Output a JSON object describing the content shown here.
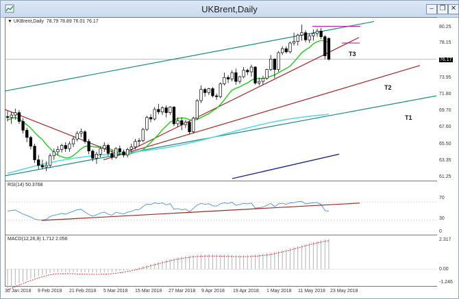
{
  "window": {
    "title": "UKBrent,Daily"
  },
  "info_line": {
    "symbol": "UKBrent,Daily",
    "values": "78.79 78.89 76.01 76.17"
  },
  "price_axis": {
    "ticks": [
      "80.25",
      "78.15",
      "76.17",
      "73.95",
      "71.80",
      "69.70",
      "67.60",
      "65.50",
      "63.35",
      "61.25"
    ],
    "current": "76.17"
  },
  "rsi": {
    "label": "RSI(14) 50.3768",
    "ticks": [
      "70",
      "30",
      "0"
    ]
  },
  "macd": {
    "label": "MACD(12,26,9) 1.712 2.056",
    "ticks": [
      "2.317",
      "0.00",
      "-1.246"
    ]
  },
  "x_axis": [
    "30 Jan 2018",
    "9 Feb 2018",
    "21 Feb 2018",
    "5 Mar 2018",
    "15 Mar 2018",
    "27 Mar 2018",
    "9 Apr 2018",
    "19 Apr 2018",
    "1 May 2018",
    "11 May 2018",
    "23 May 2018"
  ],
  "annotations": {
    "t1": "T1",
    "t2": "T2",
    "t3": "T3"
  },
  "colors": {
    "channel": "#1a8a7a",
    "trend_red": "#a02424",
    "ma_green": "#2ec82e",
    "ma_cyan": "#5fd8e6",
    "ma_blue": "#1e2b8a",
    "rsi_line": "#4b8fd6",
    "macd_hist": "#b0b0b0",
    "macd_signal": "#d02020",
    "magenta": "#b020b0"
  },
  "chart_data": {
    "type": "candlestick",
    "title": "UKBrent,Daily",
    "ylim": [
      61.25,
      80.25
    ],
    "candles": [
      {
        "date": "2018-01-30",
        "o": 69.0,
        "h": 69.7,
        "l": 68.4,
        "c": 68.9
      },
      {
        "date": "2018-01-31",
        "o": 68.9,
        "h": 69.6,
        "l": 68.1,
        "c": 69.2
      },
      {
        "date": "2018-02-01",
        "o": 69.2,
        "h": 70.0,
        "l": 68.6,
        "c": 69.5
      },
      {
        "date": "2018-02-02",
        "o": 69.5,
        "h": 69.8,
        "l": 68.1,
        "c": 68.4
      },
      {
        "date": "2018-02-05",
        "o": 68.4,
        "h": 68.8,
        "l": 66.9,
        "c": 67.3
      },
      {
        "date": "2018-02-06",
        "o": 67.3,
        "h": 67.6,
        "l": 65.8,
        "c": 66.4
      },
      {
        "date": "2018-02-07",
        "o": 66.4,
        "h": 66.6,
        "l": 64.9,
        "c": 65.3
      },
      {
        "date": "2018-02-08",
        "o": 65.3,
        "h": 65.6,
        "l": 63.2,
        "c": 63.6
      },
      {
        "date": "2018-02-09",
        "o": 63.6,
        "h": 64.2,
        "l": 62.4,
        "c": 62.9
      },
      {
        "date": "2018-02-12",
        "o": 62.9,
        "h": 63.6,
        "l": 62.4,
        "c": 62.7
      },
      {
        "date": "2018-02-13",
        "o": 62.7,
        "h": 63.4,
        "l": 62.2,
        "c": 62.9
      },
      {
        "date": "2018-02-14",
        "o": 62.9,
        "h": 64.4,
        "l": 62.6,
        "c": 64.1
      },
      {
        "date": "2018-02-15",
        "o": 64.1,
        "h": 65.0,
        "l": 63.6,
        "c": 64.6
      },
      {
        "date": "2018-02-16",
        "o": 64.6,
        "h": 65.3,
        "l": 64.2,
        "c": 64.9
      },
      {
        "date": "2018-02-19",
        "o": 64.9,
        "h": 65.6,
        "l": 64.5,
        "c": 65.4
      },
      {
        "date": "2018-02-20",
        "o": 65.4,
        "h": 65.8,
        "l": 64.6,
        "c": 65.0
      },
      {
        "date": "2018-02-21",
        "o": 65.0,
        "h": 65.9,
        "l": 64.6,
        "c": 65.6
      },
      {
        "date": "2018-02-22",
        "o": 65.6,
        "h": 66.5,
        "l": 65.2,
        "c": 66.2
      },
      {
        "date": "2018-02-23",
        "o": 66.2,
        "h": 67.2,
        "l": 65.9,
        "c": 66.9
      },
      {
        "date": "2018-02-26",
        "o": 66.9,
        "h": 67.5,
        "l": 66.4,
        "c": 67.1
      },
      {
        "date": "2018-02-27",
        "o": 67.1,
        "h": 67.3,
        "l": 65.6,
        "c": 65.9
      },
      {
        "date": "2018-02-28",
        "o": 65.9,
        "h": 66.2,
        "l": 64.3,
        "c": 64.7
      },
      {
        "date": "2018-03-01",
        "o": 64.7,
        "h": 64.9,
        "l": 63.4,
        "c": 63.8
      },
      {
        "date": "2018-03-02",
        "o": 63.8,
        "h": 64.6,
        "l": 63.1,
        "c": 64.3
      },
      {
        "date": "2018-03-05",
        "o": 64.3,
        "h": 65.3,
        "l": 63.9,
        "c": 65.0
      },
      {
        "date": "2018-03-06",
        "o": 65.0,
        "h": 65.8,
        "l": 64.6,
        "c": 65.4
      },
      {
        "date": "2018-03-07",
        "o": 65.4,
        "h": 65.6,
        "l": 64.1,
        "c": 64.4
      },
      {
        "date": "2018-03-08",
        "o": 64.4,
        "h": 64.8,
        "l": 63.6,
        "c": 63.9
      },
      {
        "date": "2018-03-09",
        "o": 63.9,
        "h": 65.2,
        "l": 63.7,
        "c": 65.0
      },
      {
        "date": "2018-03-12",
        "o": 65.0,
        "h": 65.4,
        "l": 64.3,
        "c": 64.6
      },
      {
        "date": "2018-03-13",
        "o": 64.6,
        "h": 64.9,
        "l": 63.9,
        "c": 64.2
      },
      {
        "date": "2018-03-14",
        "o": 64.2,
        "h": 65.1,
        "l": 63.9,
        "c": 64.9
      },
      {
        "date": "2018-03-15",
        "o": 64.9,
        "h": 65.6,
        "l": 64.5,
        "c": 65.2
      },
      {
        "date": "2018-03-16",
        "o": 65.2,
        "h": 66.2,
        "l": 64.9,
        "c": 65.9
      },
      {
        "date": "2018-03-19",
        "o": 65.9,
        "h": 66.3,
        "l": 65.3,
        "c": 66.0
      },
      {
        "date": "2018-03-20",
        "o": 66.0,
        "h": 67.6,
        "l": 65.8,
        "c": 67.4
      },
      {
        "date": "2018-03-21",
        "o": 67.4,
        "h": 69.1,
        "l": 67.2,
        "c": 68.9
      },
      {
        "date": "2018-03-22",
        "o": 68.9,
        "h": 69.3,
        "l": 68.3,
        "c": 68.7
      },
      {
        "date": "2018-03-23",
        "o": 68.7,
        "h": 70.2,
        "l": 68.5,
        "c": 69.9
      },
      {
        "date": "2018-03-26",
        "o": 69.9,
        "h": 70.6,
        "l": 69.3,
        "c": 69.6
      },
      {
        "date": "2018-03-27",
        "o": 69.6,
        "h": 70.3,
        "l": 69.2,
        "c": 70.1
      },
      {
        "date": "2018-03-28",
        "o": 70.1,
        "h": 70.4,
        "l": 68.9,
        "c": 69.5
      },
      {
        "date": "2018-03-29",
        "o": 69.5,
        "h": 70.3,
        "l": 69.2,
        "c": 70.2
      },
      {
        "date": "2018-04-02",
        "o": 70.2,
        "h": 70.3,
        "l": 67.8,
        "c": 68.1
      },
      {
        "date": "2018-04-03",
        "o": 68.1,
        "h": 68.9,
        "l": 67.7,
        "c": 68.5
      },
      {
        "date": "2018-04-04",
        "o": 68.5,
        "h": 68.9,
        "l": 67.3,
        "c": 68.0
      },
      {
        "date": "2018-04-05",
        "o": 68.0,
        "h": 68.6,
        "l": 67.6,
        "c": 68.3
      },
      {
        "date": "2018-04-06",
        "o": 68.3,
        "h": 68.5,
        "l": 66.8,
        "c": 67.1
      },
      {
        "date": "2018-04-09",
        "o": 67.1,
        "h": 69.0,
        "l": 66.9,
        "c": 68.8
      },
      {
        "date": "2018-04-10",
        "o": 68.8,
        "h": 71.2,
        "l": 68.6,
        "c": 71.0
      },
      {
        "date": "2018-04-11",
        "o": 71.0,
        "h": 72.9,
        "l": 70.7,
        "c": 72.4
      },
      {
        "date": "2018-04-12",
        "o": 72.4,
        "h": 72.6,
        "l": 71.5,
        "c": 72.0
      },
      {
        "date": "2018-04-13",
        "o": 72.0,
        "h": 72.6,
        "l": 71.7,
        "c": 72.5
      },
      {
        "date": "2018-04-16",
        "o": 72.5,
        "h": 72.7,
        "l": 71.4,
        "c": 71.6
      },
      {
        "date": "2018-04-17",
        "o": 71.6,
        "h": 71.9,
        "l": 71.1,
        "c": 71.5
      },
      {
        "date": "2018-04-18",
        "o": 71.5,
        "h": 73.3,
        "l": 71.3,
        "c": 73.1
      },
      {
        "date": "2018-04-19",
        "o": 73.1,
        "h": 74.5,
        "l": 72.9,
        "c": 73.9
      },
      {
        "date": "2018-04-20",
        "o": 73.9,
        "h": 74.2,
        "l": 73.2,
        "c": 73.7
      },
      {
        "date": "2018-04-23",
        "o": 73.7,
        "h": 74.8,
        "l": 73.4,
        "c": 74.5
      },
      {
        "date": "2018-04-24",
        "o": 74.5,
        "h": 75.0,
        "l": 73.0,
        "c": 73.4
      },
      {
        "date": "2018-04-25",
        "o": 73.4,
        "h": 74.1,
        "l": 73.1,
        "c": 74.0
      },
      {
        "date": "2018-04-26",
        "o": 74.0,
        "h": 75.2,
        "l": 73.8,
        "c": 74.8
      },
      {
        "date": "2018-04-27",
        "o": 74.8,
        "h": 75.0,
        "l": 74.2,
        "c": 74.6
      },
      {
        "date": "2018-04-30",
        "o": 74.6,
        "h": 75.5,
        "l": 74.0,
        "c": 75.2
      },
      {
        "date": "2018-05-01",
        "o": 75.2,
        "h": 75.3,
        "l": 73.0,
        "c": 73.2
      },
      {
        "date": "2018-05-02",
        "o": 73.2,
        "h": 73.9,
        "l": 72.9,
        "c": 73.4
      },
      {
        "date": "2018-05-03",
        "o": 73.4,
        "h": 74.1,
        "l": 73.0,
        "c": 73.8
      },
      {
        "date": "2018-05-04",
        "o": 73.8,
        "h": 75.0,
        "l": 73.6,
        "c": 74.9
      },
      {
        "date": "2018-05-07",
        "o": 74.9,
        "h": 76.7,
        "l": 74.7,
        "c": 76.2
      },
      {
        "date": "2018-05-08",
        "o": 76.2,
        "h": 76.3,
        "l": 73.8,
        "c": 74.9
      },
      {
        "date": "2018-05-09",
        "o": 74.9,
        "h": 77.2,
        "l": 74.6,
        "c": 77.0
      },
      {
        "date": "2018-05-10",
        "o": 77.0,
        "h": 77.8,
        "l": 76.7,
        "c": 77.5
      },
      {
        "date": "2018-05-11",
        "o": 77.5,
        "h": 77.8,
        "l": 76.9,
        "c": 77.1
      },
      {
        "date": "2018-05-14",
        "o": 77.1,
        "h": 78.4,
        "l": 76.9,
        "c": 78.2
      },
      {
        "date": "2018-05-15",
        "o": 78.2,
        "h": 79.5,
        "l": 77.9,
        "c": 78.4
      },
      {
        "date": "2018-05-16",
        "o": 78.4,
        "h": 79.4,
        "l": 77.9,
        "c": 79.2
      },
      {
        "date": "2018-05-17",
        "o": 79.2,
        "h": 80.5,
        "l": 78.5,
        "c": 79.5
      },
      {
        "date": "2018-05-18",
        "o": 79.5,
        "h": 79.8,
        "l": 78.3,
        "c": 78.6
      },
      {
        "date": "2018-05-21",
        "o": 78.6,
        "h": 79.4,
        "l": 78.2,
        "c": 79.1
      },
      {
        "date": "2018-05-22",
        "o": 79.1,
        "h": 79.9,
        "l": 78.5,
        "c": 79.4
      },
      {
        "date": "2018-05-23",
        "o": 79.4,
        "h": 80.0,
        "l": 79.0,
        "c": 79.7
      },
      {
        "date": "2018-05-24",
        "o": 79.7,
        "h": 80.1,
        "l": 78.7,
        "c": 79.0
      },
      {
        "date": "2018-05-25",
        "o": 79.0,
        "h": 79.2,
        "l": 76.2,
        "c": 76.6
      },
      {
        "date": "2018-05-28",
        "o": 78.79,
        "h": 78.89,
        "l": 76.01,
        "c": 76.17
      }
    ],
    "rsi_ylim": [
      0,
      100
    ],
    "macd_ylim": [
      -1.246,
      2.317
    ]
  }
}
